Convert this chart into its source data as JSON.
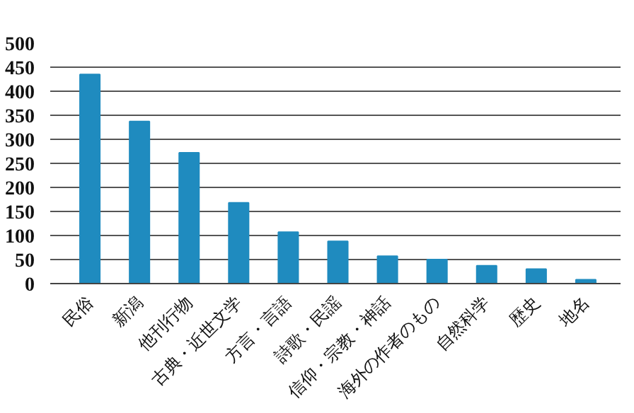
{
  "chart_data": {
    "type": "bar",
    "categories": [
      "民俗",
      "新潟",
      "他刊行物",
      "古典・近世文学",
      "方言・言語",
      "詩歌・民謡",
      "信仰・宗教・神話",
      "海外の作者のもの",
      "自然科学",
      "歴史",
      "地名"
    ],
    "values": [
      435,
      337,
      272,
      168,
      107,
      88,
      57,
      50,
      37,
      30,
      8
    ],
    "color": "#1f8bbf",
    "ylim": [
      0,
      500
    ],
    "yticks": [
      0,
      50,
      100,
      150,
      200,
      250,
      300,
      350,
      400,
      450,
      500
    ],
    "grid": "y"
  }
}
